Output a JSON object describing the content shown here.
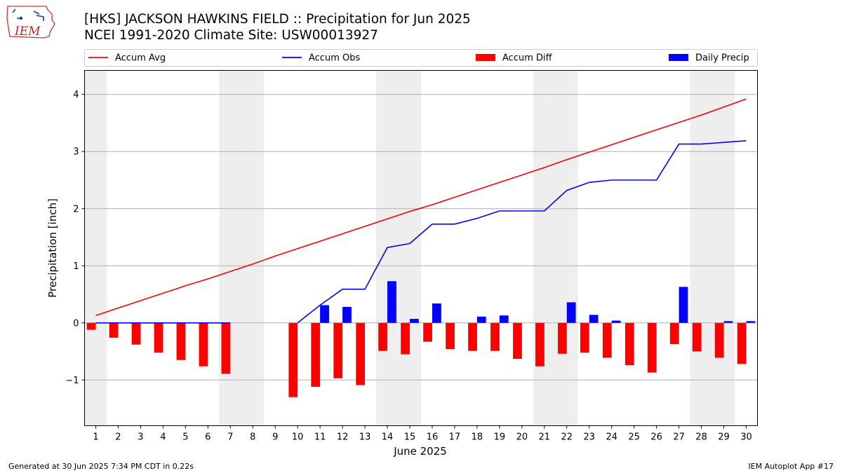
{
  "logo": {
    "text": "IEM"
  },
  "header": {
    "title": "[HKS] JACKSON HAWKINS FIELD :: Precipitation for Jun 2025",
    "subtitle": "NCEI 1991-2020 Climate Site: USW00013927"
  },
  "footer": {
    "left": "Generated at 30 Jun 2025 7:34 PM CDT in 0.22s",
    "right": "IEM Autoplot App #17"
  },
  "chart_data": {
    "type": "bar",
    "xlabel": "June 2025",
    "ylabel": "Precipitation [inch]",
    "xlim": [
      0.5,
      30.5
    ],
    "ylim": [
      -1.8,
      4.42
    ],
    "yticks": [
      -1,
      0,
      1,
      2,
      3,
      4
    ],
    "grid": "horizontal",
    "legend_position": "top",
    "days": [
      1,
      2,
      3,
      4,
      5,
      6,
      7,
      8,
      9,
      10,
      11,
      12,
      13,
      14,
      15,
      16,
      17,
      18,
      19,
      20,
      21,
      22,
      23,
      24,
      25,
      26,
      27,
      28,
      29,
      30
    ],
    "weekend_days": [
      1,
      7,
      8,
      14,
      15,
      21,
      22,
      28,
      29
    ],
    "series": [
      {
        "name": "Accum Avg",
        "kind": "line",
        "color": "#ff0000",
        "values": [
          0.13,
          0.26,
          0.39,
          0.52,
          0.65,
          0.77,
          0.9,
          1.03,
          1.17,
          1.3,
          1.43,
          1.56,
          1.69,
          1.82,
          1.95,
          2.07,
          2.2,
          2.33,
          2.46,
          2.59,
          2.72,
          2.86,
          2.99,
          3.12,
          3.25,
          3.38,
          3.51,
          3.64,
          3.78,
          3.92
        ]
      },
      {
        "name": "Accum Obs",
        "kind": "line",
        "color": "#0000ff",
        "values": [
          0,
          0,
          0,
          0,
          0,
          0,
          0,
          null,
          null,
          0,
          0.31,
          0.59,
          0.59,
          1.32,
          1.39,
          1.73,
          1.73,
          1.83,
          1.96,
          1.96,
          1.96,
          2.32,
          2.46,
          2.5,
          2.5,
          2.5,
          3.13,
          3.13,
          3.16,
          3.19
        ]
      },
      {
        "name": "Accum Diff",
        "kind": "bar",
        "color": "#ff0000",
        "values": [
          -0.12,
          -0.26,
          -0.38,
          -0.52,
          -0.65,
          -0.76,
          -0.89,
          null,
          null,
          -1.3,
          -1.12,
          -0.97,
          -1.09,
          -0.49,
          -0.55,
          -0.33,
          -0.46,
          -0.49,
          -0.49,
          -0.63,
          -0.76,
          -0.54,
          -0.52,
          -0.61,
          -0.74,
          -0.87,
          -0.37,
          -0.5,
          -0.61,
          -0.72
        ]
      },
      {
        "name": "Daily Precip",
        "kind": "bar",
        "color": "#0000ff",
        "values": [
          0,
          0,
          0,
          0,
          0,
          0,
          0,
          null,
          null,
          0,
          0.31,
          0.28,
          0,
          0.73,
          0.07,
          0.34,
          0,
          0.11,
          0.13,
          0,
          0,
          0.36,
          0.14,
          0.04,
          0,
          0,
          0.63,
          0,
          0.03,
          0.03
        ]
      }
    ]
  }
}
